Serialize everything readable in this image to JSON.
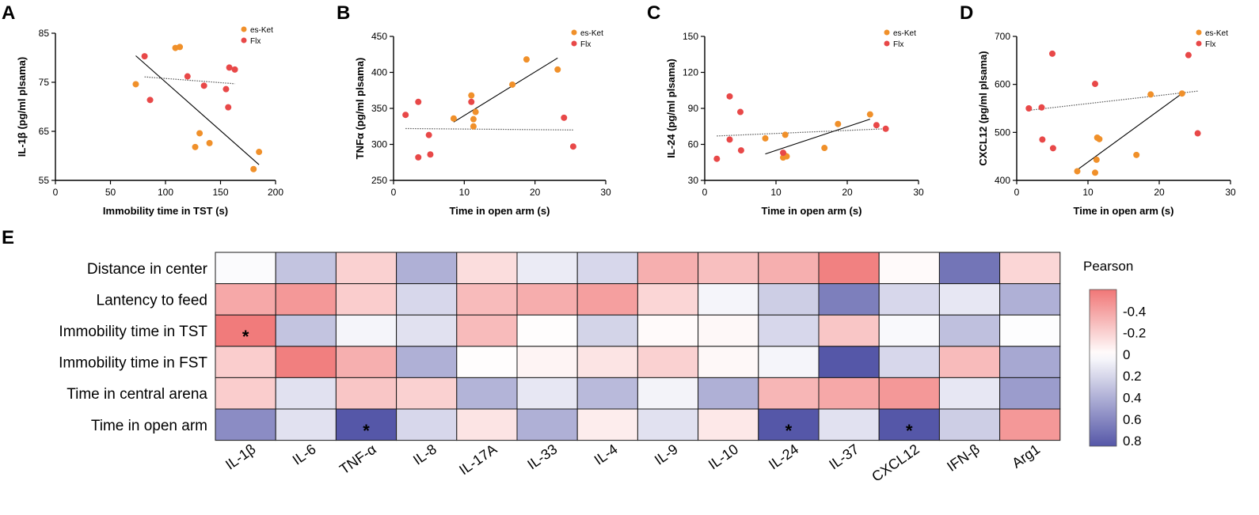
{
  "chart_data": [
    {
      "panel": "A",
      "type": "scatter",
      "xlabel": "Immobility time in TST (s)",
      "ylabel": "IL-1β (pg/ml plsama)",
      "xlim": [
        0,
        200
      ],
      "ylim": [
        55,
        85
      ],
      "xticks": [
        "0",
        "50",
        "100",
        "150",
        "200"
      ],
      "yticks": [
        "55",
        "65",
        "75",
        "85"
      ],
      "colors": {
        "es-Ket": "#f0902a",
        "Flx": "#e84848"
      },
      "series": [
        {
          "name": "es-Ket",
          "points": [
            [
              73,
              74.6
            ],
            [
              109,
              82
            ],
            [
              113,
              82.2
            ],
            [
              127,
              61.8
            ],
            [
              131,
              64.6
            ],
            [
              140,
              62.6
            ],
            [
              180,
              57.3
            ],
            [
              185,
              60.8
            ]
          ]
        },
        {
          "name": "Flx",
          "points": [
            [
              81,
              80.3
            ],
            [
              86,
              71.4
            ],
            [
              120,
              76.2
            ],
            [
              135,
              74.3
            ],
            [
              155,
              73.6
            ],
            [
              157,
              69.9
            ],
            [
              158,
              78
            ],
            [
              163,
              77.6
            ]
          ]
        }
      ],
      "fits": [
        {
          "series": "es-Ket",
          "style": "solid",
          "x": [
            73,
            185
          ],
          "y": [
            80.4,
            58.2
          ]
        },
        {
          "series": "Flx",
          "style": "dotted",
          "x": [
            81,
            163
          ],
          "y": [
            76.1,
            74.7
          ]
        }
      ]
    },
    {
      "panel": "B",
      "type": "scatter",
      "xlabel": "Time in open arm  (s)",
      "ylabel": "TNFα (pg/ml plsama)",
      "xlim": [
        0,
        30
      ],
      "ylim": [
        250,
        450
      ],
      "xticks": [
        "0",
        "10",
        "20",
        "30"
      ],
      "yticks": [
        "250",
        "300",
        "350",
        "400",
        "450"
      ],
      "colors": {
        "es-Ket": "#f0902a",
        "Flx": "#e84848"
      },
      "series": [
        {
          "name": "es-Ket",
          "points": [
            [
              8.5,
              336
            ],
            [
              11,
              368
            ],
            [
              11.3,
              335
            ],
            [
              11.3,
              325
            ],
            [
              11.6,
              345
            ],
            [
              16.8,
              383
            ],
            [
              18.8,
              418
            ],
            [
              23.2,
              404
            ]
          ]
        },
        {
          "name": "Flx",
          "points": [
            [
              1.7,
              341
            ],
            [
              3.5,
              282
            ],
            [
              3.5,
              359
            ],
            [
              5,
              313
            ],
            [
              5.2,
              286
            ],
            [
              11,
              359
            ],
            [
              24.1,
              337
            ],
            [
              25.4,
              297
            ]
          ]
        }
      ],
      "fits": [
        {
          "series": "es-Ket",
          "style": "solid",
          "x": [
            8.5,
            23.2
          ],
          "y": [
            331,
            420
          ]
        },
        {
          "series": "Flx",
          "style": "dotted",
          "x": [
            1.7,
            25.4
          ],
          "y": [
            322,
            320
          ]
        }
      ]
    },
    {
      "panel": "C",
      "type": "scatter",
      "xlabel": "Time in open arm  (s)",
      "ylabel": "IL-24 (pg/ml plsama)",
      "xlim": [
        0,
        30
      ],
      "ylim": [
        30,
        150
      ],
      "xticks": [
        "0",
        "10",
        "20",
        "30"
      ],
      "yticks": [
        "30",
        "60",
        "90",
        "120",
        "150"
      ],
      "colors": {
        "es-Ket": "#f0902a",
        "Flx": "#e84848"
      },
      "series": [
        {
          "name": "es-Ket",
          "points": [
            [
              8.5,
              65
            ],
            [
              11,
              49
            ],
            [
              11.2,
              51
            ],
            [
              11.3,
              68
            ],
            [
              11.5,
              50
            ],
            [
              16.8,
              57
            ],
            [
              18.7,
              77
            ],
            [
              23.2,
              85
            ]
          ]
        },
        {
          "name": "Flx",
          "points": [
            [
              1.7,
              48
            ],
            [
              3.5,
              100
            ],
            [
              3.5,
              64
            ],
            [
              5,
              87
            ],
            [
              5.1,
              55
            ],
            [
              11,
              53
            ],
            [
              24.1,
              76
            ],
            [
              25.4,
              73
            ]
          ]
        }
      ],
      "fits": [
        {
          "series": "es-Ket",
          "style": "solid",
          "x": [
            8.5,
            23.2
          ],
          "y": [
            52,
            81
          ]
        },
        {
          "series": "Flx",
          "style": "dotted",
          "x": [
            1.7,
            25.4
          ],
          "y": [
            67,
            73
          ]
        }
      ]
    },
    {
      "panel": "D",
      "type": "scatter",
      "xlabel": "Time in open arm  (s)",
      "ylabel": "CXCL12 (pg/ml plsama)",
      "xlim": [
        0,
        30
      ],
      "ylim": [
        400,
        700
      ],
      "xticks": [
        "0",
        "10",
        "20",
        "30"
      ],
      "yticks": [
        "400",
        "500",
        "600",
        "700"
      ],
      "colors": {
        "es-Ket": "#f0902a",
        "Flx": "#e84848"
      },
      "series": [
        {
          "name": "es-Ket",
          "points": [
            [
              8.5,
              419
            ],
            [
              11,
              416
            ],
            [
              11.2,
              443
            ],
            [
              11.3,
              489
            ],
            [
              11.6,
              486
            ],
            [
              16.8,
              453
            ],
            [
              18.8,
              579
            ],
            [
              23.2,
              581
            ]
          ]
        },
        {
          "name": "Flx",
          "points": [
            [
              1.7,
              550
            ],
            [
              3.5,
              552
            ],
            [
              3.6,
              485
            ],
            [
              5,
              664
            ],
            [
              5.1,
              467
            ],
            [
              11,
              601
            ],
            [
              24.1,
              661
            ],
            [
              25.4,
              498
            ]
          ]
        }
      ],
      "fits": [
        {
          "series": "es-Ket",
          "style": "solid",
          "x": [
            8.5,
            23.2
          ],
          "y": [
            422,
            581
          ]
        },
        {
          "series": "Flx",
          "style": "dotted",
          "x": [
            1.7,
            25.4
          ],
          "y": [
            546,
            586
          ]
        }
      ]
    },
    {
      "panel": "E",
      "type": "heatmap",
      "rows": [
        "Distance in center",
        "Lantency to feed",
        "Immobility time in TST",
        "Immobility time in FST",
        "Time in central arena",
        "Time in open arm"
      ],
      "columns": [
        "IL-1β",
        "IL-6",
        "TNF-α",
        "IL-8",
        "IL-17A",
        "IL-33",
        "IL-4",
        "IL-9",
        "IL-10",
        "IL-24",
        "IL-37",
        "CXCL12",
        "IFN-β",
        "Arg1"
      ],
      "values": [
        [
          0.02,
          0.3,
          -0.2,
          0.4,
          -0.15,
          0.1,
          0.2,
          -0.35,
          -0.28,
          -0.35,
          -0.55,
          -0.02,
          0.7,
          -0.18
        ],
        [
          -0.38,
          -0.45,
          -0.22,
          0.2,
          -0.3,
          -0.36,
          -0.42,
          -0.18,
          0.05,
          0.25,
          0.65,
          0.2,
          0.12,
          0.4
        ],
        [
          -0.58,
          0.3,
          0.05,
          0.15,
          -0.3,
          -0.01,
          0.22,
          -0.02,
          -0.03,
          0.2,
          -0.25,
          0.03,
          0.32,
          0.01
        ],
        [
          -0.22,
          -0.56,
          -0.35,
          0.4,
          -0.01,
          -0.05,
          -0.12,
          -0.2,
          -0.03,
          0.05,
          0.85,
          0.2,
          -0.3,
          0.44
        ],
        [
          -0.22,
          0.15,
          -0.25,
          -0.2,
          0.38,
          0.12,
          0.35,
          0.06,
          0.4,
          -0.32,
          -0.38,
          -0.45,
          0.12,
          0.5
        ],
        [
          0.58,
          0.15,
          0.86,
          0.2,
          -0.12,
          0.4,
          -0.08,
          0.15,
          -0.1,
          0.86,
          0.15,
          0.87,
          0.25,
          -0.45
        ]
      ],
      "significant": [
        [
          2,
          0
        ],
        [
          5,
          2
        ],
        [
          5,
          9
        ],
        [
          5,
          11
        ]
      ],
      "star_text": "*",
      "colorbar": {
        "title": "Pearson",
        "tick_labels": [
          "-0.4",
          "-0.2",
          "0",
          "0.2",
          "0.4",
          "0.6",
          "0.8"
        ],
        "tick_values": [
          -0.4,
          -0.2,
          0,
          0.2,
          0.4,
          0.6,
          0.8
        ],
        "range": [
          -0.6,
          0.85
        ],
        "negative_color": "#f07676",
        "zero_color": "#ffffff",
        "positive_color": "#5557a8"
      }
    }
  ]
}
